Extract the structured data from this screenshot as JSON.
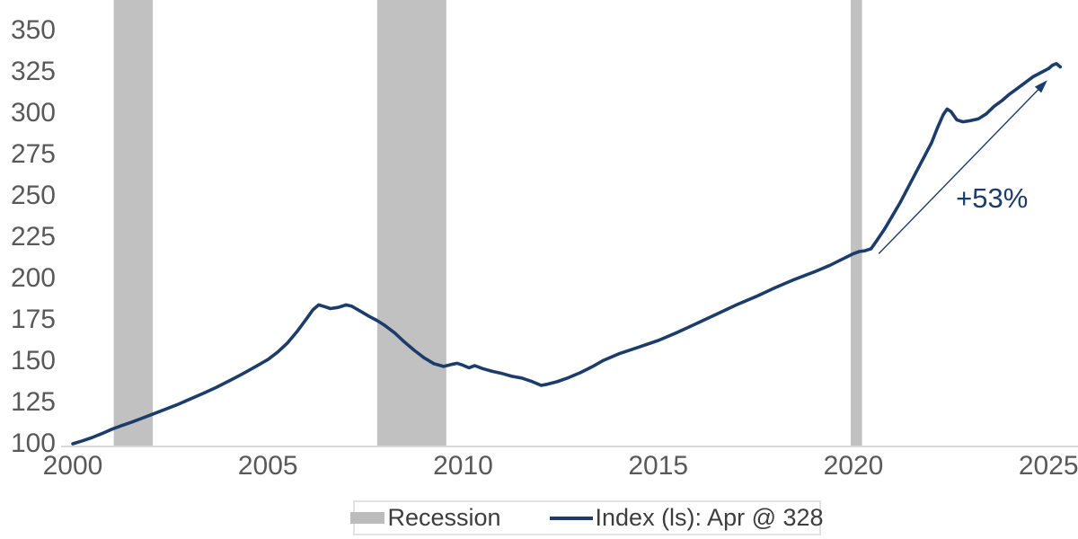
{
  "legend": {
    "recession_label": "Recession",
    "series_label": "Index (ls): Apr @ 328"
  },
  "colors": {
    "line": "#1c3c6b",
    "recession_band": "#c1c1c1",
    "axis_text": "#595959",
    "legend_text": "#3d3d3d",
    "axis_line": "#d9d9d9",
    "annotation": "#1c3c6b",
    "background": "#ffffff"
  },
  "chart_data": {
    "type": "line",
    "title": "",
    "xlabel": "",
    "ylabel": "",
    "grid": false,
    "legend_position": "bottom-center",
    "x_ticks": [
      2000,
      2005,
      2010,
      2015,
      2020,
      2025
    ],
    "y_ticks": [
      100,
      125,
      150,
      175,
      200,
      225,
      250,
      275,
      300,
      325,
      350
    ],
    "xlim": [
      1999.7,
      2025.8
    ],
    "ylim": [
      98,
      368
    ],
    "recession_bands": [
      [
        2001.05,
        2002.05
      ],
      [
        2007.8,
        2009.57
      ],
      [
        2019.93,
        2020.22
      ]
    ],
    "annotation": {
      "text": "+53%",
      "text_at": [
        2023.55,
        249
      ],
      "arrow_from": [
        2020.65,
        215
      ],
      "arrow_to": [
        2024.97,
        320
      ]
    },
    "series": [
      {
        "name": "Index (ls): Apr @ 328",
        "last_point_label": "Apr @ 328",
        "points": [
          [
            2000.0,
            100
          ],
          [
            2000.25,
            101.8
          ],
          [
            2000.5,
            103.8
          ],
          [
            2000.75,
            106.2
          ],
          [
            2001.0,
            108.8
          ],
          [
            2001.25,
            111
          ],
          [
            2001.5,
            113
          ],
          [
            2001.75,
            115.2
          ],
          [
            2002.0,
            117.5
          ],
          [
            2002.33,
            120.5
          ],
          [
            2002.67,
            123.6
          ],
          [
            2003.0,
            127
          ],
          [
            2003.33,
            130.4
          ],
          [
            2003.67,
            134
          ],
          [
            2004.0,
            138
          ],
          [
            2004.33,
            142
          ],
          [
            2004.67,
            146.5
          ],
          [
            2005.0,
            151
          ],
          [
            2005.25,
            155.5
          ],
          [
            2005.5,
            161
          ],
          [
            2005.75,
            168
          ],
          [
            2006.0,
            176
          ],
          [
            2006.15,
            181
          ],
          [
            2006.3,
            184
          ],
          [
            2006.45,
            183
          ],
          [
            2006.6,
            181.8
          ],
          [
            2006.8,
            182.5
          ],
          [
            2007.0,
            184
          ],
          [
            2007.15,
            183.2
          ],
          [
            2007.35,
            180.5
          ],
          [
            2007.6,
            177
          ],
          [
            2007.8,
            174.5
          ],
          [
            2008.0,
            171.5
          ],
          [
            2008.25,
            167
          ],
          [
            2008.5,
            161.5
          ],
          [
            2008.75,
            156.5
          ],
          [
            2009.0,
            152
          ],
          [
            2009.25,
            148.5
          ],
          [
            2009.5,
            146.8
          ],
          [
            2009.7,
            148
          ],
          [
            2009.85,
            148.7
          ],
          [
            2010.0,
            147.5
          ],
          [
            2010.15,
            146
          ],
          [
            2010.3,
            147.3
          ],
          [
            2010.5,
            145.5
          ],
          [
            2010.75,
            143.8
          ],
          [
            2011.0,
            142.5
          ],
          [
            2011.25,
            140.8
          ],
          [
            2011.5,
            139.8
          ],
          [
            2011.75,
            137.8
          ],
          [
            2012.0,
            135.3
          ],
          [
            2012.15,
            136
          ],
          [
            2012.4,
            137.5
          ],
          [
            2012.7,
            140
          ],
          [
            2013.0,
            143
          ],
          [
            2013.3,
            146.5
          ],
          [
            2013.6,
            150.5
          ],
          [
            2014.0,
            154.5
          ],
          [
            2014.5,
            158.5
          ],
          [
            2015.0,
            162.5
          ],
          [
            2015.5,
            167.5
          ],
          [
            2016.0,
            173
          ],
          [
            2016.5,
            178.5
          ],
          [
            2017.0,
            184
          ],
          [
            2017.5,
            189
          ],
          [
            2018.0,
            194.5
          ],
          [
            2018.5,
            199.5
          ],
          [
            2019.0,
            204
          ],
          [
            2019.4,
            208
          ],
          [
            2019.7,
            211.5
          ],
          [
            2020.0,
            215
          ],
          [
            2020.15,
            216.3
          ],
          [
            2020.3,
            216.8
          ],
          [
            2020.45,
            218
          ],
          [
            2020.6,
            223
          ],
          [
            2020.8,
            230
          ],
          [
            2021.0,
            238
          ],
          [
            2021.2,
            246
          ],
          [
            2021.4,
            255
          ],
          [
            2021.6,
            264
          ],
          [
            2021.8,
            273
          ],
          [
            2022.0,
            282
          ],
          [
            2022.15,
            291
          ],
          [
            2022.3,
            299
          ],
          [
            2022.4,
            302.5
          ],
          [
            2022.5,
            301
          ],
          [
            2022.65,
            296
          ],
          [
            2022.8,
            294.8
          ],
          [
            2023.0,
            295.5
          ],
          [
            2023.2,
            296.5
          ],
          [
            2023.4,
            299.5
          ],
          [
            2023.6,
            304
          ],
          [
            2023.8,
            307.5
          ],
          [
            2024.0,
            311.5
          ],
          [
            2024.2,
            315
          ],
          [
            2024.4,
            318.5
          ],
          [
            2024.6,
            322
          ],
          [
            2024.8,
            324.5
          ],
          [
            2025.0,
            327
          ],
          [
            2025.1,
            329
          ],
          [
            2025.2,
            330
          ],
          [
            2025.3,
            328
          ]
        ]
      }
    ]
  }
}
